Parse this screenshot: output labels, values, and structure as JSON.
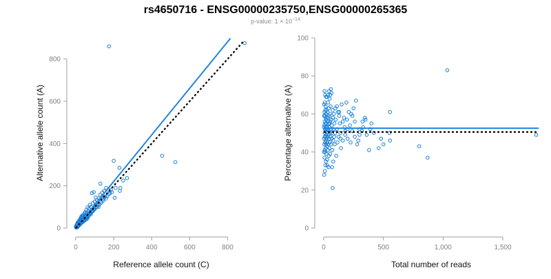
{
  "figure": {
    "title": "rs4650716 - ENSG00000235750,ENSG00000265365",
    "subtitle_prefix": "p-value: 1 × 10",
    "subtitle_exponent": "−14"
  },
  "colors": {
    "points": "#1a7fd6",
    "fit_line": "#1f83e0",
    "reference_line": "#000000"
  },
  "chart_data": [
    {
      "type": "scatter",
      "title": "",
      "xlabel": "Reference allele count (C)",
      "ylabel": "Alternative allele count (A)",
      "xlim": [
        0,
        900
      ],
      "ylim": [
        0,
        900
      ],
      "x_ticks": [
        0,
        200,
        400,
        600,
        800
      ],
      "x_tick_labels": [
        "0",
        "200",
        "400",
        "600",
        "800"
      ],
      "y_ticks": [
        0,
        200,
        400,
        600,
        800
      ],
      "y_tick_labels": [
        "0",
        "200",
        "400",
        "600",
        "800"
      ],
      "grid": false,
      "points": [
        [
          175,
          860
        ],
        [
          890,
          875
        ],
        [
          455,
          342
        ],
        [
          525,
          312
        ],
        [
          200,
          318
        ],
        [
          230,
          285
        ],
        [
          235,
          190
        ],
        [
          270,
          236
        ],
        [
          232,
          176
        ],
        [
          205,
          143
        ],
        [
          185,
          180
        ],
        [
          170,
          180
        ],
        [
          160,
          190
        ],
        [
          150,
          175
        ],
        [
          140,
          168
        ],
        [
          130,
          210
        ],
        [
          128,
          158
        ],
        [
          120,
          140
        ],
        [
          112,
          132
        ],
        [
          105,
          145
        ],
        [
          100,
          125
        ],
        [
          95,
          170
        ],
        [
          90,
          118
        ],
        [
          85,
          165
        ],
        [
          80,
          100
        ],
        [
          75,
          110
        ],
        [
          70,
          92
        ],
        [
          66,
          80
        ],
        [
          62,
          98
        ],
        [
          58,
          70
        ],
        [
          55,
          85
        ],
        [
          52,
          62
        ],
        [
          50,
          75
        ],
        [
          48,
          55
        ],
        [
          45,
          68
        ],
        [
          42,
          50
        ],
        [
          40,
          60
        ],
        [
          38,
          45
        ],
        [
          36,
          52
        ],
        [
          34,
          40
        ],
        [
          32,
          47
        ],
        [
          30,
          36
        ],
        [
          28,
          42
        ],
        [
          26,
          30
        ],
        [
          25,
          38
        ],
        [
          24,
          28
        ],
        [
          22,
          33
        ],
        [
          21,
          25
        ],
        [
          20,
          30
        ],
        [
          19,
          22
        ],
        [
          18,
          26
        ],
        [
          17,
          20
        ],
        [
          16,
          24
        ],
        [
          15,
          18
        ],
        [
          14,
          21
        ],
        [
          13,
          16
        ],
        [
          12,
          19
        ],
        [
          11,
          14
        ],
        [
          10,
          17
        ],
        [
          9,
          12
        ],
        [
          8,
          15
        ],
        [
          7,
          10
        ],
        [
          6,
          12
        ],
        [
          5,
          8
        ],
        [
          4,
          10
        ],
        [
          3,
          6
        ],
        [
          2,
          8
        ],
        [
          1,
          4
        ],
        [
          2,
          2
        ],
        [
          4,
          3
        ],
        [
          6,
          5
        ],
        [
          8,
          6
        ],
        [
          10,
          8
        ],
        [
          12,
          9
        ],
        [
          14,
          11
        ],
        [
          16,
          12
        ],
        [
          18,
          14
        ],
        [
          20,
          15
        ],
        [
          22,
          17
        ],
        [
          24,
          19
        ],
        [
          26,
          21
        ],
        [
          28,
          23
        ],
        [
          30,
          25
        ],
        [
          33,
          28
        ],
        [
          36,
          31
        ],
        [
          40,
          35
        ],
        [
          44,
          38
        ],
        [
          48,
          42
        ],
        [
          53,
          46
        ],
        [
          58,
          50
        ],
        [
          64,
          56
        ],
        [
          70,
          62
        ],
        [
          78,
          70
        ],
        [
          86,
          78
        ],
        [
          95,
          86
        ],
        [
          110,
          98
        ],
        [
          125,
          112
        ],
        [
          145,
          130
        ],
        [
          165,
          150
        ],
        [
          190,
          170
        ],
        [
          15,
          30
        ],
        [
          18,
          35
        ],
        [
          22,
          40
        ],
        [
          25,
          45
        ],
        [
          28,
          50
        ],
        [
          10,
          25
        ],
        [
          12,
          28
        ],
        [
          30,
          55
        ],
        [
          35,
          60
        ],
        [
          40,
          30
        ],
        [
          45,
          35
        ],
        [
          55,
          40
        ],
        [
          60,
          45
        ],
        [
          65,
          50
        ],
        [
          80,
          65
        ],
        [
          90,
          80
        ],
        [
          100,
          90
        ],
        [
          115,
          105
        ],
        [
          120,
          100
        ],
        [
          135,
          120
        ],
        [
          150,
          145
        ],
        [
          160,
          140
        ],
        [
          180,
          165
        ],
        [
          210,
          190
        ],
        [
          250,
          225
        ],
        [
          8,
          20
        ],
        [
          5,
          15
        ],
        [
          3,
          12
        ],
        [
          7,
          3
        ],
        [
          9,
          5
        ],
        [
          11,
          7
        ],
        [
          13,
          9
        ],
        [
          17,
          13
        ],
        [
          19,
          16
        ],
        [
          21,
          18
        ],
        [
          23,
          20
        ],
        [
          27,
          22
        ],
        [
          29,
          27
        ],
        [
          31,
          29
        ],
        [
          35,
          33
        ],
        [
          37,
          36
        ],
        [
          39,
          34
        ],
        [
          43,
          41
        ],
        [
          47,
          44
        ],
        [
          51,
          48
        ],
        [
          57,
          53
        ],
        [
          63,
          59
        ],
        [
          69,
          64
        ],
        [
          74,
          68
        ],
        [
          82,
          75
        ],
        [
          88,
          82
        ],
        [
          96,
          92
        ],
        [
          104,
          96
        ],
        [
          118,
          110
        ],
        [
          132,
          125
        ],
        [
          142,
          136
        ],
        [
          155,
          150
        ],
        [
          175,
          160
        ]
      ],
      "lines": [
        {
          "style": "solid",
          "color": "#1f83e0",
          "x": [
            0,
            815
          ],
          "y": [
            0,
            898
          ]
        },
        {
          "style": "dotted",
          "color": "#000000",
          "x": [
            0,
            880
          ],
          "y": [
            0,
            880
          ]
        }
      ]
    },
    {
      "type": "scatter",
      "title": "",
      "xlabel": "Total number of reads",
      "ylabel": "Percentage alternative (A)",
      "xlim": [
        0,
        1800
      ],
      "ylim": [
        0,
        100
      ],
      "x_ticks": [
        0,
        500,
        1000,
        1500
      ],
      "x_tick_labels": [
        "0",
        "500",
        "1,000",
        "1,500"
      ],
      "y_ticks": [
        0,
        20,
        40,
        60,
        80,
        100
      ],
      "y_tick_labels": [
        "0",
        "20",
        "40",
        "60",
        "80",
        "100"
      ],
      "grid": false,
      "points": [
        [
          1035,
          83
        ],
        [
          75,
          21
        ],
        [
          870,
          37
        ],
        [
          1780,
          49
        ],
        [
          800,
          43
        ],
        [
          555,
          61
        ],
        [
          550,
          50
        ],
        [
          555,
          46
        ],
        [
          500,
          44
        ],
        [
          480,
          47
        ],
        [
          460,
          42
        ],
        [
          420,
          50
        ],
        [
          400,
          55
        ],
        [
          380,
          41
        ],
        [
          350,
          57
        ],
        [
          345,
          58
        ],
        [
          330,
          53
        ],
        [
          325,
          56
        ],
        [
          300,
          49
        ],
        [
          300,
          52
        ],
        [
          290,
          46
        ],
        [
          280,
          44
        ],
        [
          270,
          67
        ],
        [
          260,
          48
        ],
        [
          250,
          63
        ],
        [
          240,
          51
        ],
        [
          230,
          60
        ],
        [
          225,
          45
        ],
        [
          210,
          61
        ],
        [
          200,
          52
        ],
        [
          195,
          57
        ],
        [
          190,
          66
        ],
        [
          180,
          49
        ],
        [
          175,
          53
        ],
        [
          170,
          58
        ],
        [
          160,
          46
        ],
        [
          150,
          65
        ],
        [
          145,
          42
        ],
        [
          140,
          50
        ],
        [
          135,
          55
        ],
        [
          130,
          59
        ],
        [
          125,
          48
        ],
        [
          120,
          61
        ],
        [
          115,
          45
        ],
        [
          110,
          52
        ],
        [
          105,
          38
        ],
        [
          100,
          57
        ],
        [
          98,
          63
        ],
        [
          95,
          50
        ],
        [
          92,
          44
        ],
        [
          90,
          55
        ],
        [
          88,
          48
        ],
        [
          85,
          60
        ],
        [
          82,
          52
        ],
        [
          80,
          46
        ],
        [
          78,
          58
        ],
        [
          75,
          62
        ],
        [
          72,
          41
        ],
        [
          70,
          50
        ],
        [
          68,
          54
        ],
        [
          66,
          47
        ],
        [
          64,
          57
        ],
        [
          62,
          44
        ],
        [
          60,
          52
        ],
        [
          58,
          64
        ],
        [
          56,
          48
        ],
        [
          55,
          56
        ],
        [
          54,
          39
        ],
        [
          53,
          60
        ],
        [
          52,
          50
        ],
        [
          51,
          45
        ],
        [
          50,
          55
        ],
        [
          49,
          68
        ],
        [
          48,
          42
        ],
        [
          47,
          53
        ],
        [
          46,
          59
        ],
        [
          45,
          47
        ],
        [
          44,
          51
        ],
        [
          43,
          63
        ],
        [
          42,
          38
        ],
        [
          41,
          55
        ],
        [
          40,
          49
        ],
        [
          39,
          58
        ],
        [
          38,
          44
        ],
        [
          37,
          52
        ],
        [
          36,
          66
        ],
        [
          35,
          41
        ],
        [
          34,
          56
        ],
        [
          33,
          48
        ],
        [
          32,
          61
        ],
        [
          31,
          45
        ],
        [
          30,
          53
        ],
        [
          29,
          36
        ],
        [
          28,
          58
        ],
        [
          27,
          50
        ],
        [
          26,
          43
        ],
        [
          25,
          62
        ],
        [
          24,
          47
        ],
        [
          23,
          55
        ],
        [
          22,
          39
        ],
        [
          21,
          52
        ],
        [
          20,
          69
        ],
        [
          20,
          57
        ],
        [
          19,
          44
        ],
        [
          19,
          49
        ],
        [
          18,
          60
        ],
        [
          18,
          35
        ],
        [
          17,
          53
        ],
        [
          17,
          46
        ],
        [
          16,
          64
        ],
        [
          16,
          42
        ],
        [
          15,
          51
        ],
        [
          15,
          58
        ],
        [
          14,
          33
        ],
        [
          14,
          48
        ],
        [
          13,
          62
        ],
        [
          13,
          55
        ],
        [
          12,
          40
        ],
        [
          12,
          70
        ],
        [
          11,
          45
        ],
        [
          11,
          52
        ],
        [
          10,
          59
        ],
        [
          10,
          30
        ],
        [
          9,
          66
        ],
        [
          9,
          48
        ],
        [
          8,
          41
        ],
        [
          8,
          56
        ],
        [
          7,
          72
        ],
        [
          7,
          50
        ],
        [
          6,
          37
        ],
        [
          6,
          61
        ],
        [
          5,
          44
        ],
        [
          5,
          54
        ],
        [
          4,
          65
        ],
        [
          4,
          28
        ],
        [
          3,
          47
        ],
        [
          3,
          59
        ],
        [
          2,
          40
        ],
        [
          2,
          53
        ],
        [
          60,
          73
        ],
        [
          65,
          71
        ],
        [
          55,
          70
        ],
        [
          45,
          72
        ],
        [
          35,
          70
        ],
        [
          25,
          69
        ],
        [
          70,
          32
        ],
        [
          40,
          32
        ],
        [
          30,
          33
        ],
        [
          80,
          35
        ],
        [
          110,
          64
        ],
        [
          130,
          61
        ],
        [
          140,
          47
        ],
        [
          160,
          56
        ],
        [
          180,
          51
        ],
        [
          200,
          47
        ],
        [
          220,
          54
        ],
        [
          240,
          59
        ],
        [
          260,
          56
        ],
        [
          320,
          51
        ],
        [
          360,
          49
        ],
        [
          390,
          52
        ]
      ],
      "lines": [
        {
          "style": "solid",
          "color": "#1f83e0",
          "x": [
            0,
            1800
          ],
          "y": [
            52.5,
            52.5
          ]
        },
        {
          "style": "dotted",
          "color": "#000000",
          "x": [
            0,
            1800
          ],
          "y": [
            50.5,
            50.5
          ]
        }
      ]
    }
  ]
}
